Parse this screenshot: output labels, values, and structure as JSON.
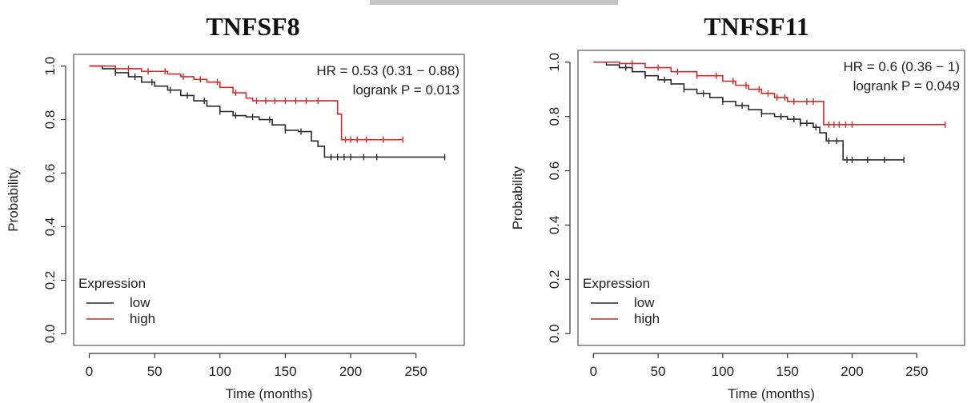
{
  "chart_data": [
    {
      "type": "line",
      "title": "TNFSF8",
      "xlabel": "Time (months)",
      "ylabel": "Probability",
      "xlim": [
        0,
        275
      ],
      "ylim": [
        0,
        1
      ],
      "xticks": [
        0,
        50,
        100,
        150,
        200,
        250
      ],
      "yticks": [
        0.0,
        0.2,
        0.4,
        0.6,
        0.8,
        1.0
      ],
      "stats": [
        "HR = 0.53 (0.31 − 0.88)",
        "logrank P = 0.013"
      ],
      "legend": {
        "title": "Expression",
        "position": "bottom-left"
      },
      "series": [
        {
          "name": "low",
          "color": "#2b2b2b",
          "x": [
            0,
            10,
            20,
            30,
            40,
            50,
            60,
            70,
            80,
            90,
            100,
            110,
            120,
            130,
            140,
            150,
            160,
            170,
            175,
            180,
            200,
            230,
            272
          ],
          "y": [
            1.0,
            0.99,
            0.975,
            0.96,
            0.94,
            0.925,
            0.91,
            0.89,
            0.87,
            0.85,
            0.83,
            0.815,
            0.81,
            0.8,
            0.78,
            0.76,
            0.755,
            0.72,
            0.7,
            0.66,
            0.66,
            0.66,
            0.66
          ],
          "censored": [
            20,
            35,
            48,
            62,
            75,
            88,
            100,
            112,
            125,
            138,
            150,
            162,
            185,
            190,
            195,
            200,
            210,
            220,
            272
          ]
        },
        {
          "name": "high",
          "color": "#d22b2b",
          "x": [
            0,
            20,
            40,
            60,
            70,
            80,
            90,
            100,
            110,
            120,
            125,
            180,
            190,
            193,
            240
          ],
          "y": [
            1.0,
            0.99,
            0.98,
            0.97,
            0.96,
            0.95,
            0.94,
            0.92,
            0.9,
            0.88,
            0.87,
            0.87,
            0.82,
            0.725,
            0.725
          ],
          "censored": [
            30,
            45,
            58,
            72,
            85,
            98,
            112,
            128,
            135,
            142,
            150,
            158,
            166,
            175,
            196,
            200,
            205,
            212,
            225,
            240
          ]
        }
      ]
    },
    {
      "type": "line",
      "title": "TNFSF11",
      "xlabel": "Time (months)",
      "ylabel": "Probability",
      "xlim": [
        0,
        275
      ],
      "ylim": [
        0,
        1
      ],
      "xticks": [
        0,
        50,
        100,
        150,
        200,
        250
      ],
      "yticks": [
        0.0,
        0.2,
        0.4,
        0.6,
        0.8,
        1.0
      ],
      "stats": [
        "HR = 0.6 (0.36 − 1)",
        "logrank P = 0.049"
      ],
      "legend": {
        "title": "Expression",
        "position": "bottom-left"
      },
      "series": [
        {
          "name": "low",
          "color": "#2b2b2b",
          "x": [
            0,
            10,
            20,
            30,
            40,
            50,
            60,
            70,
            80,
            90,
            100,
            110,
            120,
            130,
            140,
            150,
            160,
            170,
            175,
            180,
            190,
            193,
            240
          ],
          "y": [
            1.0,
            0.99,
            0.98,
            0.965,
            0.95,
            0.935,
            0.92,
            0.9,
            0.885,
            0.87,
            0.855,
            0.84,
            0.825,
            0.81,
            0.8,
            0.79,
            0.775,
            0.76,
            0.74,
            0.71,
            0.71,
            0.64,
            0.64
          ],
          "censored": [
            25,
            40,
            55,
            70,
            85,
            100,
            115,
            130,
            145,
            155,
            160,
            165,
            172,
            182,
            188,
            196,
            200,
            212,
            225,
            240
          ]
        },
        {
          "name": "high",
          "color": "#d22b2b",
          "x": [
            0,
            20,
            40,
            60,
            80,
            100,
            110,
            120,
            130,
            140,
            150,
            175,
            178,
            272
          ],
          "y": [
            1.0,
            0.995,
            0.98,
            0.965,
            0.95,
            0.93,
            0.915,
            0.9,
            0.885,
            0.87,
            0.855,
            0.855,
            0.77,
            0.77
          ],
          "censored": [
            30,
            50,
            65,
            80,
            95,
            108,
            118,
            128,
            135,
            142,
            148,
            155,
            165,
            170,
            182,
            186,
            190,
            195,
            200,
            272
          ]
        }
      ]
    }
  ]
}
